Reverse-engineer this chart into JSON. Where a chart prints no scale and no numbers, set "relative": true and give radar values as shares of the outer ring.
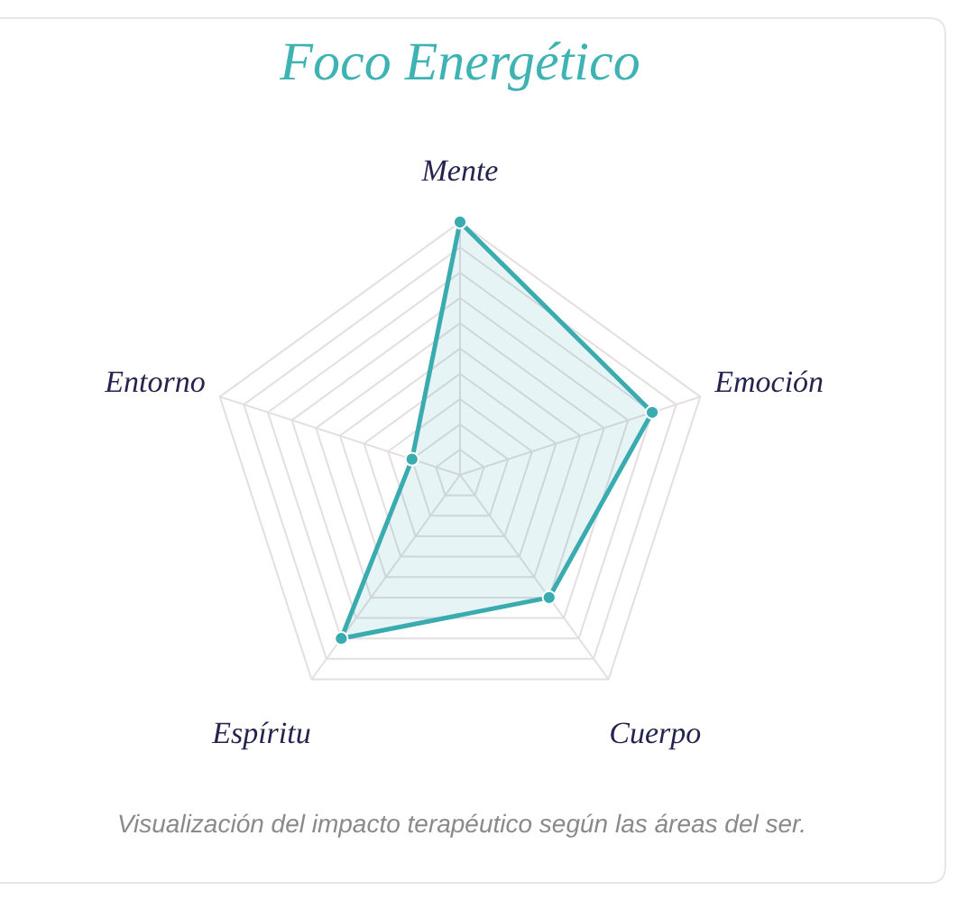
{
  "chart_data": {
    "type": "radar",
    "title": "Foco Energético",
    "categories": [
      "Mente",
      "Emoción",
      "Cuerpo",
      "Espíritu",
      "Entorno"
    ],
    "relative": true,
    "grid": true,
    "marker": "circle",
    "series": [
      {
        "color": "#3aabae",
        "values": [
          1,
          0.8,
          0.6,
          0.8,
          0.2
        ]
      }
    ],
    "annotations": [
      "Visualización del impacto terapéutico según las áreas del ser."
    ]
  }
}
